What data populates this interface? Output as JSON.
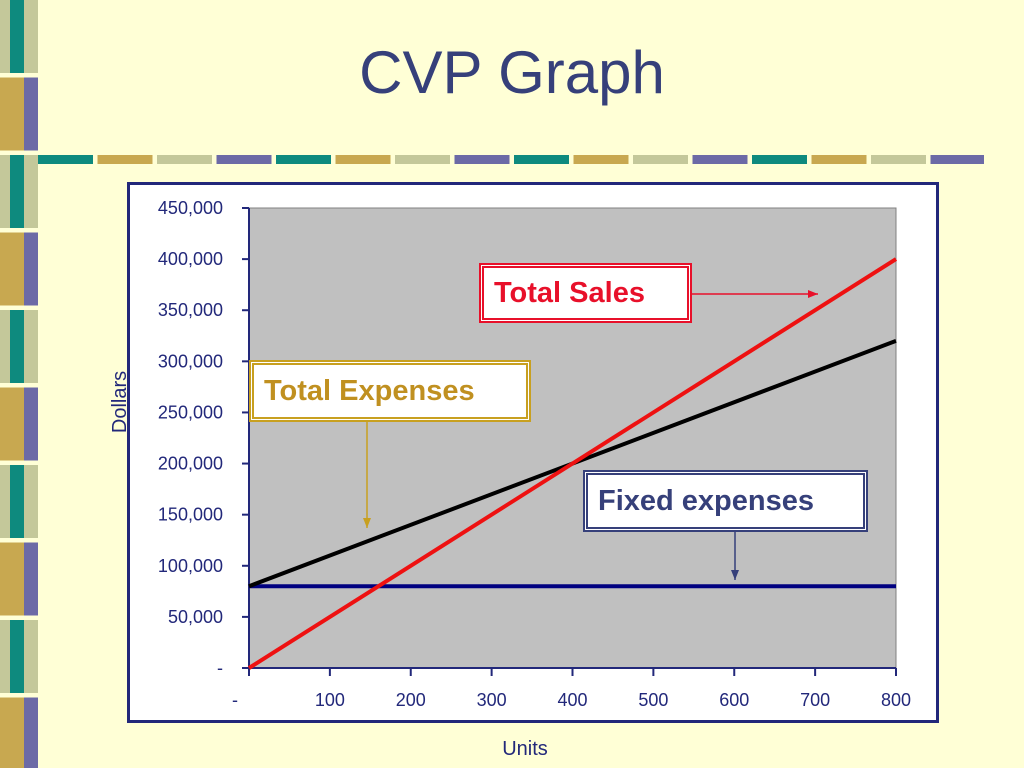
{
  "slide": {
    "title": "CVP Graph",
    "colors": {
      "background": "#ffffd6",
      "title": "#36407a",
      "strip_teal": "#0e8a7e",
      "strip_gold": "#c8a850",
      "strip_sage": "#c4c89a",
      "strip_purple": "#6c6aa6"
    }
  },
  "chart_data": {
    "type": "line",
    "title": "",
    "xlabel": "Units",
    "ylabel": "Dollars",
    "xlim": [
      0,
      800
    ],
    "ylim": [
      0,
      450000
    ],
    "x_ticks": [
      0,
      100,
      200,
      300,
      400,
      500,
      600,
      700,
      800
    ],
    "x_tick_labels": [
      "-",
      "100",
      "200",
      "300",
      "400",
      "500",
      "600",
      "700",
      "800"
    ],
    "y_ticks": [
      0,
      50000,
      100000,
      150000,
      200000,
      250000,
      300000,
      350000,
      400000,
      450000
    ],
    "y_tick_labels": [
      "-",
      "50,000",
      "100,000",
      "150,000",
      "200,000",
      "250,000",
      "300,000",
      "350,000",
      "400,000",
      "450,000"
    ],
    "plot_background": "#c0c0c0",
    "grid": false,
    "series": [
      {
        "name": "Total Sales",
        "color": "#ee1111",
        "x": [
          0,
          800
        ],
        "y": [
          0,
          400000
        ]
      },
      {
        "name": "Total Expenses",
        "color": "#000000",
        "x": [
          0,
          800
        ],
        "y": [
          80000,
          320000
        ]
      },
      {
        "name": "Fixed expenses",
        "color": "#000080",
        "x": [
          0,
          800
        ],
        "y": [
          80000,
          80000
        ]
      }
    ],
    "annotations": [
      {
        "text": "Total Sales",
        "color": "#e8102a"
      },
      {
        "text": "Total Expenses",
        "color": "#c09020"
      },
      {
        "text": "Fixed expenses",
        "color": "#36407a"
      }
    ]
  }
}
